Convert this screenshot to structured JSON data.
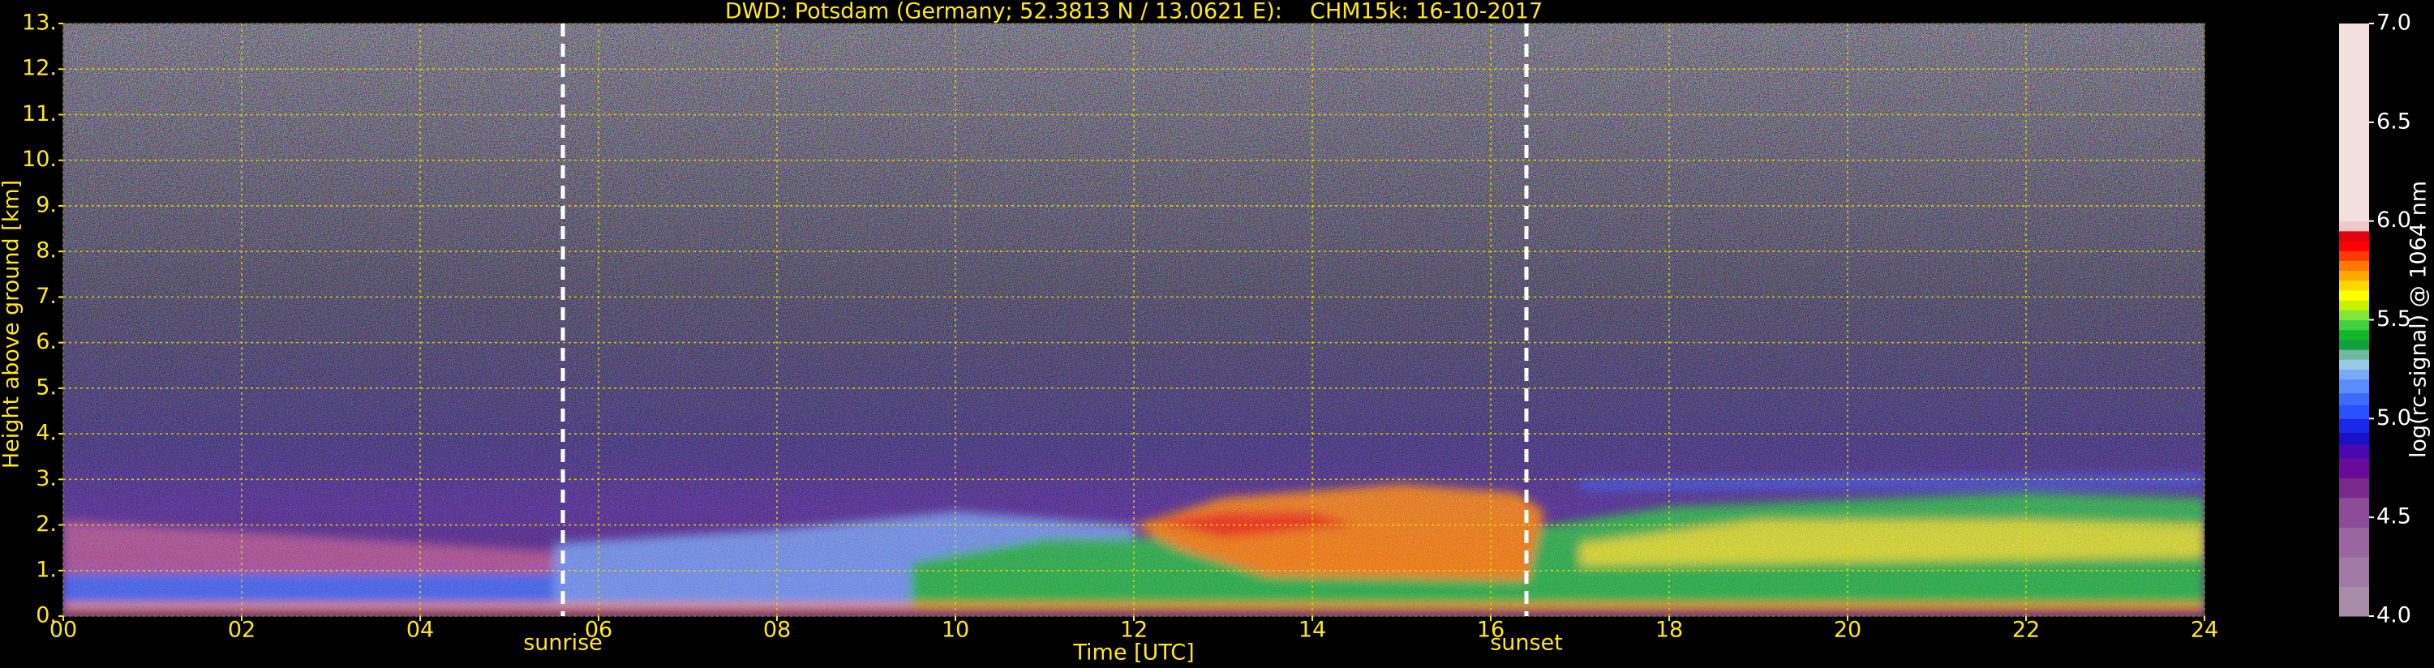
{
  "chart_data": {
    "type": "heatmap",
    "title": "DWD: Potsdam (Germany; 52.3813 N / 13.0621 E):    CHM15k: 16-10-2017",
    "xlabel": "Time [UTC]",
    "ylabel": "Height above ground [km]",
    "xlim": [
      0,
      24
    ],
    "xticks": [
      {
        "value": 0,
        "label": "00"
      },
      {
        "value": 2,
        "label": "02"
      },
      {
        "value": 4,
        "label": "04"
      },
      {
        "value": 6,
        "label": "06"
      },
      {
        "value": 8,
        "label": "08"
      },
      {
        "value": 10,
        "label": "10"
      },
      {
        "value": 12,
        "label": "12"
      },
      {
        "value": 14,
        "label": "14"
      },
      {
        "value": 16,
        "label": "16"
      },
      {
        "value": 18,
        "label": "18"
      },
      {
        "value": 20,
        "label": "20"
      },
      {
        "value": 22,
        "label": "22"
      },
      {
        "value": 24,
        "label": "24"
      }
    ],
    "ylim": [
      0,
      13
    ],
    "yticks": [
      {
        "value": 0,
        "label": "0."
      },
      {
        "value": 1,
        "label": "1."
      },
      {
        "value": 2,
        "label": "2."
      },
      {
        "value": 3,
        "label": "3."
      },
      {
        "value": 4,
        "label": "4."
      },
      {
        "value": 5,
        "label": "5."
      },
      {
        "value": 6,
        "label": "6."
      },
      {
        "value": 7,
        "label": "7."
      },
      {
        "value": 8,
        "label": "8."
      },
      {
        "value": 9,
        "label": "9."
      },
      {
        "value": 10,
        "label": "10."
      },
      {
        "value": 11,
        "label": "11."
      },
      {
        "value": 12,
        "label": "12."
      },
      {
        "value": 13,
        "label": "13."
      }
    ],
    "grid": true,
    "annotations": [
      {
        "label": "sunrise",
        "x": 5.6
      },
      {
        "label": "sunset",
        "x": 16.4
      }
    ],
    "colorbar": {
      "label": "log(rc-signal) @ 1064 nm",
      "lim": [
        4,
        7
      ],
      "ticks": [
        {
          "value": 4,
          "label": "4.0"
        },
        {
          "value": 4.5,
          "label": "4.5"
        },
        {
          "value": 5,
          "label": "5.0"
        },
        {
          "value": 5.5,
          "label": "5.5"
        },
        {
          "value": 6,
          "label": "6.0"
        },
        {
          "value": 6.5,
          "label": "6.5"
        },
        {
          "value": 7,
          "label": "7.0"
        }
      ],
      "levels": [
        4.0,
        4.15,
        4.3,
        4.45,
        4.6,
        4.7,
        4.8,
        4.87,
        4.93,
        5.0,
        5.07,
        5.13,
        5.2,
        5.25,
        5.3,
        5.35,
        5.4,
        5.45,
        5.5,
        5.55,
        5.6,
        5.65,
        5.7,
        5.75,
        5.8,
        5.85,
        5.9,
        5.95,
        6.0,
        7.0
      ],
      "colors": [
        "#a88ca8",
        "#a07aa4",
        "#9a66a0",
        "#8c4c98",
        "#7a2a8a",
        "#6a0a9a",
        "#4a08b0",
        "#1a10c8",
        "#1a28e8",
        "#2a50ff",
        "#3c6cff",
        "#5a8cff",
        "#7aaaf4",
        "#96c8e8",
        "#70b8a0",
        "#10a040",
        "#10b828",
        "#40d040",
        "#80e838",
        "#c8f000",
        "#ffff00",
        "#ffd800",
        "#ffa800",
        "#ff7800",
        "#ff3c00",
        "#ff0000",
        "#e00010",
        "#f0c8c8",
        "#f2e0e0",
        "#ffffff"
      ]
    }
  }
}
